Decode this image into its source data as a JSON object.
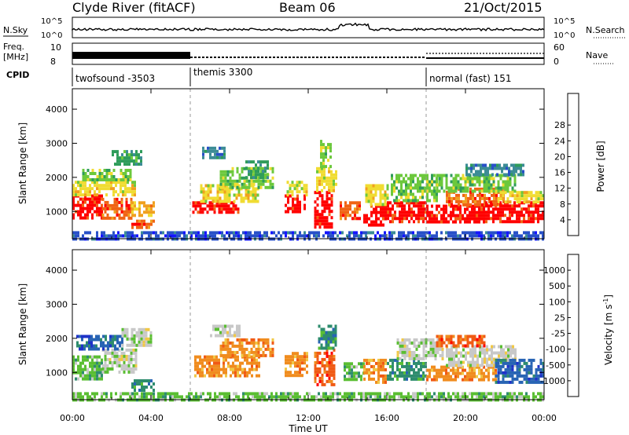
{
  "header": {
    "station": "Clyde River (fitACF)",
    "beam": "Beam 06",
    "date": "21/Oct/2015"
  },
  "noise_panel": {
    "left_label": "N.Sky",
    "left_top": "10^5",
    "left_bottom": "10^0",
    "right_top": "10^5",
    "right_bottom": "10^0",
    "right_label": "N.Search"
  },
  "freq_panel": {
    "left_label_1": "Freq.",
    "left_label_2": "[MHz]",
    "left_top": "10",
    "left_bottom": "8",
    "right_top": "60",
    "right_bottom": "0",
    "right_label": "Nave"
  },
  "cpid": {
    "label": "CPID",
    "segments": [
      {
        "start": 0,
        "name": "twofsound -3503"
      },
      {
        "start": 6,
        "name": "themis 3300"
      },
      {
        "start": 18,
        "name": "normal (fast) 151"
      }
    ]
  },
  "chart_data": [
    {
      "type": "heatmap",
      "title": "",
      "xlabel": "Time UT",
      "ylabel": "Slant Range [km]",
      "xlim": [
        0,
        24
      ],
      "ylim": [
        200,
        4600
      ],
      "x_tick_labels": [
        "00:00",
        "04:00",
        "08:00",
        "12:00",
        "16:00",
        "20:00",
        "00:00"
      ],
      "x_ticks": [
        0,
        4,
        8,
        12,
        16,
        20,
        24
      ],
      "y_ticks": [
        1000,
        2000,
        3000,
        4000
      ],
      "colorbar": {
        "label": "Power [dB]",
        "tick_labels": [
          "4",
          "8",
          "12",
          "16",
          "20",
          "24",
          "28"
        ],
        "colors": [
          "#1414ff",
          "#2850c8",
          "#3c8c96",
          "#2e9c5a",
          "#6cc83c",
          "#f0dc32",
          "#f0a01e",
          "#f06414",
          "#ff0000"
        ]
      },
      "cpid_boundaries": [
        6,
        18
      ],
      "regions": [
        {
          "t0": 0.0,
          "t1": 1.5,
          "r0": 800,
          "r1": 1500,
          "level": 8
        },
        {
          "t0": 1.5,
          "t1": 3.0,
          "r0": 800,
          "r1": 1400,
          "level": 7
        },
        {
          "t0": 3.0,
          "t1": 4.1,
          "r0": 850,
          "r1": 1300,
          "level": 6
        },
        {
          "t0": 0.0,
          "t1": 3.2,
          "r0": 1450,
          "r1": 1900,
          "level": 5
        },
        {
          "t0": 0.5,
          "t1": 3.0,
          "r0": 1900,
          "r1": 2250,
          "level": 4
        },
        {
          "t0": 2.0,
          "t1": 3.5,
          "r0": 2400,
          "r1": 2800,
          "level": 3
        },
        {
          "t0": 3.0,
          "t1": 4.1,
          "r0": 500,
          "r1": 760,
          "level": 7
        },
        {
          "t0": 6.1,
          "t1": 8.5,
          "r0": 1000,
          "r1": 1300,
          "level": 8
        },
        {
          "t0": 6.5,
          "t1": 9.5,
          "r0": 1300,
          "r1": 1800,
          "level": 5
        },
        {
          "t0": 7.5,
          "t1": 10.2,
          "r0": 1700,
          "r1": 2300,
          "level": 4
        },
        {
          "t0": 8.8,
          "t1": 10.0,
          "r0": 2000,
          "r1": 2500,
          "level": 3
        },
        {
          "t0": 6.6,
          "t1": 7.8,
          "r0": 2600,
          "r1": 2900,
          "level": 2
        },
        {
          "t0": 10.8,
          "t1": 11.8,
          "r0": 1000,
          "r1": 1500,
          "level": 8
        },
        {
          "t0": 10.9,
          "t1": 11.9,
          "r0": 1500,
          "r1": 1900,
          "level": 5
        },
        {
          "t0": 12.3,
          "t1": 13.2,
          "r0": 500,
          "r1": 1600,
          "level": 8
        },
        {
          "t0": 12.4,
          "t1": 13.4,
          "r0": 1600,
          "r1": 2300,
          "level": 5
        },
        {
          "t0": 12.6,
          "t1": 13.2,
          "r0": 2300,
          "r1": 3100,
          "level": 4
        },
        {
          "t0": 13.6,
          "t1": 14.6,
          "r0": 800,
          "r1": 1300,
          "level": 7
        },
        {
          "t0": 14.8,
          "t1": 16.0,
          "r0": 600,
          "r1": 1200,
          "level": 8
        },
        {
          "t0": 14.9,
          "t1": 16.0,
          "r0": 1200,
          "r1": 1800,
          "level": 5
        },
        {
          "t0": 16.0,
          "t1": 18.0,
          "r0": 700,
          "r1": 1300,
          "level": 8
        },
        {
          "t0": 16.2,
          "t1": 18.5,
          "r0": 1300,
          "r1": 2100,
          "level": 4
        },
        {
          "t0": 18.0,
          "t1": 21.0,
          "r0": 700,
          "r1": 1200,
          "level": 8
        },
        {
          "t0": 19.0,
          "t1": 22.0,
          "r0": 1200,
          "r1": 1700,
          "level": 7
        },
        {
          "t0": 18.5,
          "t1": 22.5,
          "r0": 1600,
          "r1": 2100,
          "level": 4
        },
        {
          "t0": 21.0,
          "t1": 24.0,
          "r0": 700,
          "r1": 1300,
          "level": 8
        },
        {
          "t0": 21.5,
          "t1": 24.0,
          "r0": 1300,
          "r1": 1600,
          "level": 5
        },
        {
          "t0": 20.0,
          "t1": 23.0,
          "r0": 2100,
          "r1": 2400,
          "level": 2
        },
        {
          "t0": 0.0,
          "t1": 24.0,
          "r0": 200,
          "r1": 420,
          "level": 1
        }
      ]
    },
    {
      "type": "heatmap",
      "title": "",
      "xlabel": "Time UT",
      "ylabel": "Slant Range [km]",
      "xlim": [
        0,
        24
      ],
      "ylim": [
        200,
        4600
      ],
      "x_tick_labels": [
        "00:00",
        "04:00",
        "08:00",
        "12:00",
        "16:00",
        "20:00",
        "00:00"
      ],
      "x_ticks": [
        0,
        4,
        8,
        12,
        16,
        20,
        24
      ],
      "y_ticks": [
        1000,
        2000,
        3000,
        4000
      ],
      "colorbar": {
        "label": "Velocity [m s^-1]",
        "tick_labels": [
          "1000",
          "500",
          "100",
          "25",
          "-25",
          "-100",
          "-500",
          "-1000"
        ],
        "colors": [
          "#1e32c8",
          "#2864b4",
          "#2e8c6e",
          "#5abe32",
          "#c8c8c8",
          "#f0c846",
          "#f08c1e",
          "#f05a14",
          "#ff0000"
        ]
      },
      "cpid_boundaries": [
        6,
        18
      ],
      "regions": [
        {
          "t0": 0.0,
          "t1": 1.5,
          "r0": 800,
          "r1": 1500,
          "level": 3
        },
        {
          "t0": 1.5,
          "t1": 3.2,
          "r0": 1000,
          "r1": 1700,
          "level": 4
        },
        {
          "t0": 0.2,
          "t1": 2.5,
          "r0": 1700,
          "r1": 2100,
          "level": 1
        },
        {
          "t0": 2.5,
          "t1": 4.0,
          "r0": 1800,
          "r1": 2300,
          "level": 4
        },
        {
          "t0": 3.0,
          "t1": 4.2,
          "r0": 500,
          "r1": 800,
          "level": 2
        },
        {
          "t0": 6.2,
          "t1": 9.5,
          "r0": 900,
          "r1": 1500,
          "level": 6
        },
        {
          "t0": 7.5,
          "t1": 10.2,
          "r0": 1500,
          "r1": 2000,
          "level": 6
        },
        {
          "t0": 7.0,
          "t1": 8.5,
          "r0": 2100,
          "r1": 2400,
          "level": 4
        },
        {
          "t0": 10.8,
          "t1": 12.0,
          "r0": 900,
          "r1": 1600,
          "level": 6
        },
        {
          "t0": 12.3,
          "t1": 13.3,
          "r0": 600,
          "r1": 1700,
          "level": 7
        },
        {
          "t0": 12.5,
          "t1": 13.4,
          "r0": 1700,
          "r1": 2400,
          "level": 2
        },
        {
          "t0": 13.8,
          "t1": 14.8,
          "r0": 800,
          "r1": 1300,
          "level": 3
        },
        {
          "t0": 14.8,
          "t1": 16.0,
          "r0": 700,
          "r1": 1400,
          "level": 6
        },
        {
          "t0": 16.0,
          "t1": 18.0,
          "r0": 800,
          "r1": 1400,
          "level": 2
        },
        {
          "t0": 16.5,
          "t1": 18.8,
          "r0": 1400,
          "r1": 2000,
          "level": 4
        },
        {
          "t0": 18.0,
          "t1": 21.5,
          "r0": 800,
          "r1": 1200,
          "level": 6
        },
        {
          "t0": 19.0,
          "t1": 22.5,
          "r0": 1200,
          "r1": 1800,
          "level": 4
        },
        {
          "t0": 18.5,
          "t1": 21.0,
          "r0": 1800,
          "r1": 2100,
          "level": 7
        },
        {
          "t0": 21.5,
          "t1": 24.0,
          "r0": 700,
          "r1": 1400,
          "level": 1
        },
        {
          "t0": 0.0,
          "t1": 24.0,
          "r0": 200,
          "r1": 420,
          "level": 3
        }
      ]
    }
  ]
}
